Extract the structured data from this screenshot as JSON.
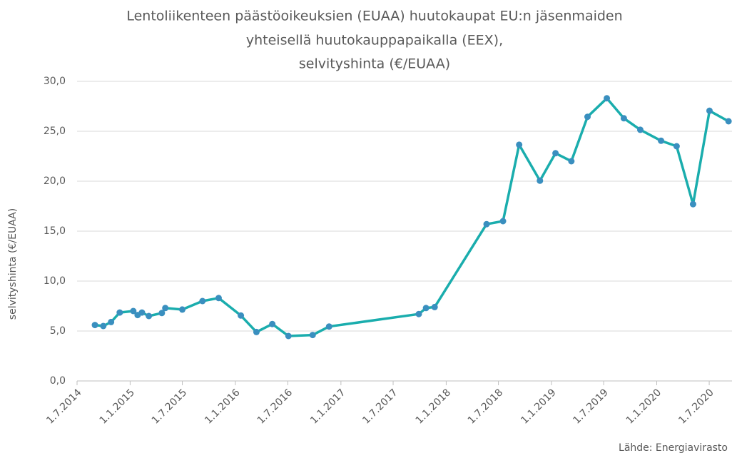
{
  "chart_data": {
    "type": "line",
    "title": [
      "Lentoliikenteen päästöoikeuksien (EUAA) huutokaupat EU:n jäsenmaiden",
      "yhteisellä huutokauppapaikalla (EEX),",
      "selvityshinta (€/EUAA)"
    ],
    "y_label": "selvityshinta (€/EUAA)",
    "source": "Lähde: Energiavirasto",
    "x": [
      "2014-09-01",
      "2014-09-30",
      "2014-10-27",
      "2014-11-26",
      "2015-01-12",
      "2015-01-27",
      "2015-02-11",
      "2015-03-07",
      "2015-04-21",
      "2015-05-03",
      "2015-07-01",
      "2015-09-09",
      "2015-11-04",
      "2016-01-20",
      "2016-03-14",
      "2016-05-08",
      "2016-07-03",
      "2016-09-25",
      "2016-11-21",
      "2017-09-28",
      "2017-10-23",
      "2017-11-22",
      "2018-05-21",
      "2018-07-17",
      "2018-09-11",
      "2018-11-22",
      "2019-01-15",
      "2019-03-11",
      "2019-05-06",
      "2019-07-12",
      "2019-09-09",
      "2019-11-05",
      "2020-01-16",
      "2020-03-10",
      "2020-05-06",
      "2020-07-02",
      "2020-09-06"
    ],
    "series": [
      {
        "name": "selvityshinta",
        "color": "#1aadad",
        "marker_color": "#3a8fbf",
        "values": [
          5.6,
          5.5,
          5.9,
          6.85,
          7.0,
          6.6,
          6.85,
          6.5,
          6.8,
          7.3,
          7.15,
          8.0,
          8.3,
          6.55,
          4.9,
          5.7,
          4.5,
          4.6,
          5.45,
          6.7,
          7.3,
          7.4,
          15.7,
          16.0,
          23.65,
          20.05,
          22.8,
          22.0,
          26.45,
          28.3,
          26.3,
          25.15,
          24.05,
          23.5,
          17.7,
          27.05,
          26.0
        ]
      }
    ],
    "xlim": [
      "2014-07-01",
      "2020-09-18"
    ],
    "xticks": [
      {
        "value": "2014-07-01",
        "label": "1.7.2014"
      },
      {
        "value": "2015-01-01",
        "label": "1.1.2015"
      },
      {
        "value": "2015-07-01",
        "label": "1.7.2015"
      },
      {
        "value": "2016-01-01",
        "label": "1.1.2016"
      },
      {
        "value": "2016-07-01",
        "label": "1.7.2016"
      },
      {
        "value": "2017-01-01",
        "label": "1.1.2017"
      },
      {
        "value": "2017-07-01",
        "label": "1.7.2017"
      },
      {
        "value": "2018-01-01",
        "label": "1.1.2018"
      },
      {
        "value": "2018-07-01",
        "label": "1.7.2018"
      },
      {
        "value": "2019-01-01",
        "label": "1.1.2019"
      },
      {
        "value": "2019-07-01",
        "label": "1.7.2019"
      },
      {
        "value": "2020-01-01",
        "label": "1.1.2020"
      },
      {
        "value": "2020-07-01",
        "label": "1.7.2020"
      }
    ],
    "ylim": [
      0,
      30
    ],
    "yticks": [
      {
        "value": 0,
        "label": "0,0"
      },
      {
        "value": 5,
        "label": "5,0"
      },
      {
        "value": 10,
        "label": "10,0"
      },
      {
        "value": 15,
        "label": "15,0"
      },
      {
        "value": 20,
        "label": "20,0"
      },
      {
        "value": 25,
        "label": "25,0"
      },
      {
        "value": 30,
        "label": "30,0"
      }
    ],
    "grid": true
  }
}
